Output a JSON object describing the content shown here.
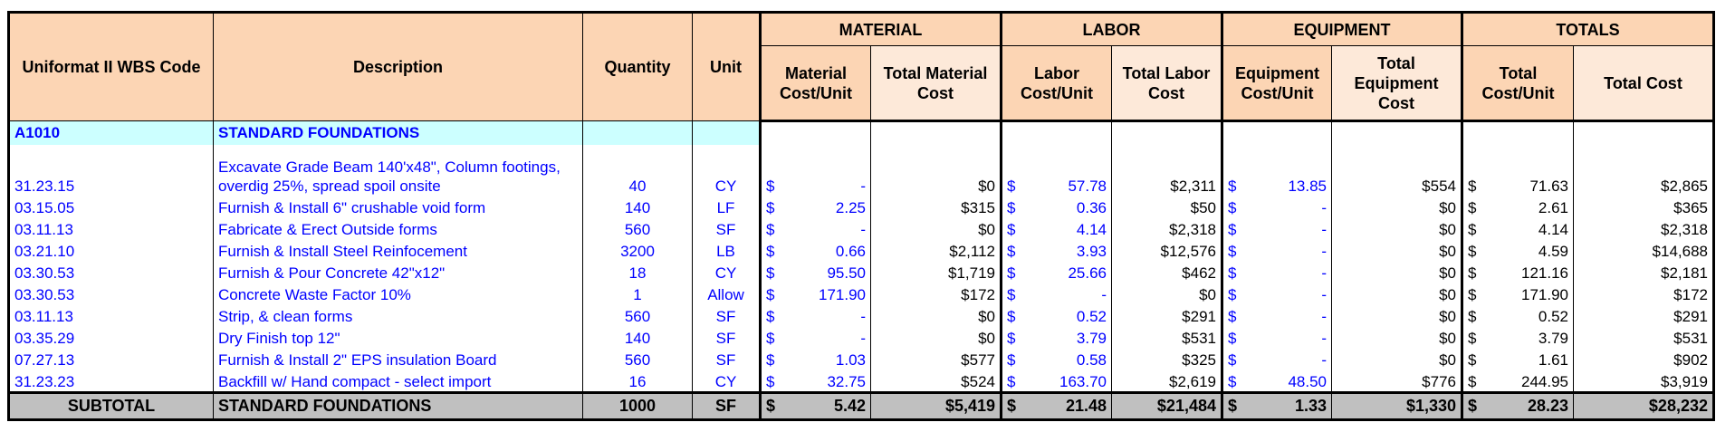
{
  "header": {
    "uniformat": "Uniformat II WBS Code",
    "description": "Description",
    "quantity": "Quantity",
    "unit": "Unit",
    "groups": [
      "MATERIAL",
      "LABOR",
      "EQUIPMENT",
      "TOTALS"
    ],
    "columns": [
      "Material Cost/Unit",
      "Total Material Cost",
      "Labor Cost/Unit",
      "Total Labor Cost",
      "Equipment Cost/Unit",
      "Total Equipment Cost",
      "Total Cost/Unit",
      "Total Cost"
    ]
  },
  "section": {
    "code": "A1010",
    "title": "STANDARD FOUNDATIONS"
  },
  "rows": [
    [
      "31.23.15",
      "Excavate Grade Beam 140'x48\",  Column footings, overdig 25%, spread spoil onsite",
      "40",
      "CY",
      [
        "$",
        "-"
      ],
      "$0",
      [
        "$",
        "57.78"
      ],
      "$2,311",
      [
        "$",
        "13.85"
      ],
      "$554",
      [
        "$",
        "71.63"
      ],
      "$2,865"
    ],
    [
      "03.15.05",
      "Furnish & Install 6\" crushable void form",
      "140",
      "LF",
      [
        "$",
        "2.25"
      ],
      "$315",
      [
        "$",
        "0.36"
      ],
      "$50",
      [
        "$",
        "-"
      ],
      "$0",
      [
        "$",
        "2.61"
      ],
      "$365"
    ],
    [
      "03.11.13",
      "Fabricate & Erect Outside forms",
      "560",
      "SF",
      [
        "$",
        "-"
      ],
      "$0",
      [
        "$",
        "4.14"
      ],
      "$2,318",
      [
        "$",
        "-"
      ],
      "$0",
      [
        "$",
        "4.14"
      ],
      "$2,318"
    ],
    [
      "03.21.10",
      "Furnish & Install Steel Reinfocement",
      "3200",
      "LB",
      [
        "$",
        "0.66"
      ],
      "$2,112",
      [
        "$",
        "3.93"
      ],
      "$12,576",
      [
        "$",
        "-"
      ],
      "$0",
      [
        "$",
        "4.59"
      ],
      "$14,688"
    ],
    [
      "03.30.53",
      "Furnish & Pour Concrete 42\"x12\"",
      "18",
      "CY",
      [
        "$",
        "95.50"
      ],
      "$1,719",
      [
        "$",
        "25.66"
      ],
      "$462",
      [
        "$",
        "-"
      ],
      "$0",
      [
        "$",
        "121.16"
      ],
      "$2,181"
    ],
    [
      "03.30.53",
      "Concrete Waste Factor 10%",
      "1",
      "Allow",
      [
        "$",
        "171.90"
      ],
      "$172",
      [
        "$",
        "-"
      ],
      "$0",
      [
        "$",
        "-"
      ],
      "$0",
      [
        "$",
        "171.90"
      ],
      "$172"
    ],
    [
      "03.11.13",
      "Strip, & clean forms",
      "560",
      "SF",
      [
        "$",
        "-"
      ],
      "$0",
      [
        "$",
        "0.52"
      ],
      "$291",
      [
        "$",
        "-"
      ],
      "$0",
      [
        "$",
        "0.52"
      ],
      "$291"
    ],
    [
      "03.35.29",
      "Dry Finish top 12\"",
      "140",
      "SF",
      [
        "$",
        "-"
      ],
      "$0",
      [
        "$",
        "3.79"
      ],
      "$531",
      [
        "$",
        "-"
      ],
      "$0",
      [
        "$",
        "3.79"
      ],
      "$531"
    ],
    [
      "07.27.13",
      "Furnish & Install 2\" EPS insulation Board",
      "560",
      "SF",
      [
        "$",
        "1.03"
      ],
      "$577",
      [
        "$",
        "0.58"
      ],
      "$325",
      [
        "$",
        "-"
      ],
      "$0",
      [
        "$",
        "1.61"
      ],
      "$902"
    ],
    [
      "31.23.23",
      "Backfill w/ Hand compact - select import",
      "16",
      "CY",
      [
        "$",
        "32.75"
      ],
      "$524",
      [
        "$",
        "163.70"
      ],
      "$2,619",
      [
        "$",
        "48.50"
      ],
      "$776",
      [
        "$",
        "244.95"
      ],
      "$3,919"
    ]
  ],
  "subtotal": [
    "SUBTOTAL",
    "STANDARD FOUNDATIONS",
    "1000",
    "SF",
    [
      "$",
      "5.42"
    ],
    "$5,419",
    [
      "$",
      "21.48"
    ],
    "$21,484",
    [
      "$",
      "1.33"
    ],
    "$1,330",
    [
      "$",
      "28.23"
    ],
    "$28,232"
  ]
}
